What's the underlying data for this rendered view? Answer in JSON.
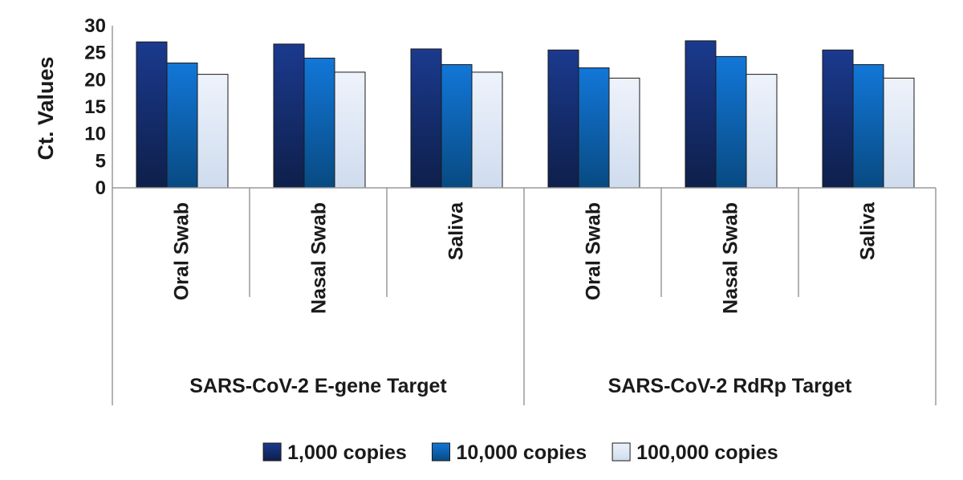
{
  "chart_data": {
    "type": "bar",
    "ylabel": "Ct. Values",
    "ylim": [
      0,
      30
    ],
    "yticks": [
      0,
      5,
      10,
      15,
      20,
      25,
      30
    ],
    "grid": false,
    "legend_position": "bottom",
    "groups": [
      {
        "label": "SARS-CoV-2 E-gene Target",
        "categories": [
          "Oral Swab",
          "Nasal Swab",
          "Saliva"
        ]
      },
      {
        "label": "SARS-CoV-2 RdRp Target",
        "categories": [
          "Oral Swab",
          "Nasal Swab",
          "Saliva"
        ]
      }
    ],
    "categories": [
      "Oral Swab",
      "Nasal Swab",
      "Saliva",
      "Oral Swab",
      "Nasal Swab",
      "Saliva"
    ],
    "series": [
      {
        "name": "1,000 copies",
        "values": [
          27.0,
          26.6,
          25.7,
          25.5,
          27.2,
          25.5
        ],
        "colors": [
          "#1b3a8e",
          "#0e1f4a"
        ]
      },
      {
        "name": "10,000 copies",
        "values": [
          23.1,
          24.0,
          22.8,
          22.2,
          24.3,
          22.8
        ],
        "colors": [
          "#1277d8",
          "#084a82"
        ]
      },
      {
        "name": "100,000 copies",
        "values": [
          21.0,
          21.4,
          21.4,
          20.3,
          21.0,
          20.3
        ],
        "colors": [
          "#eef3fb",
          "#cfdcee"
        ]
      }
    ]
  }
}
